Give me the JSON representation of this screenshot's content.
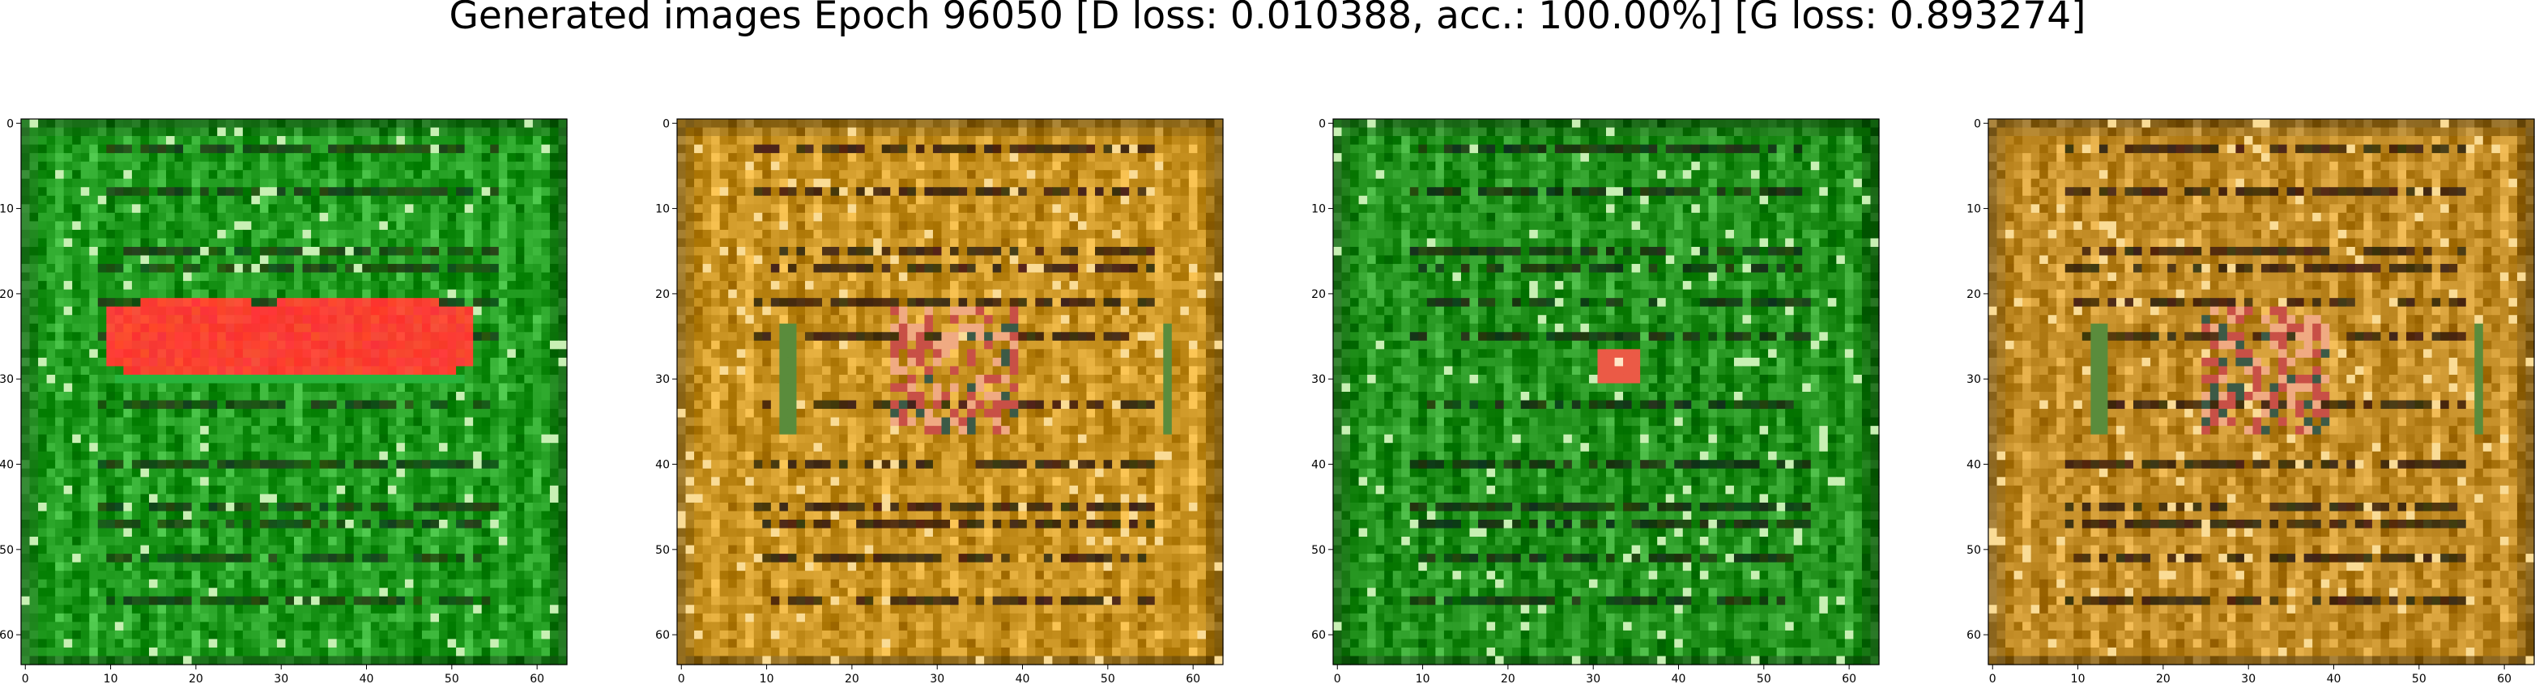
{
  "figure": {
    "title": "Generated images Epoch 96050 [D loss: 0.010388, acc.: 100.00%] [G loss: 0.893274]"
  },
  "axes_ticks": {
    "x": [
      "0",
      "10",
      "20",
      "30",
      "40",
      "50",
      "60"
    ],
    "y": [
      "0",
      "10",
      "20",
      "30",
      "40",
      "50",
      "60"
    ]
  },
  "image_grid_size": 64,
  "panels": [
    {
      "id": "panel-1",
      "base_color": "#1f9a1e",
      "line_color": "#0d3f0c",
      "palette": "green",
      "feature": "red-blob"
    },
    {
      "id": "panel-2",
      "base_color": "#c99322",
      "line_color": "#3a2208",
      "palette": "ochre",
      "feature": "center-detail"
    },
    {
      "id": "panel-3",
      "base_color": "#1f8f1a",
      "line_color": "#0b300a",
      "palette": "green",
      "feature": "small-red-spot"
    },
    {
      "id": "panel-4",
      "base_color": "#c18b25",
      "line_color": "#3a2208",
      "palette": "ochre",
      "feature": "center-detail"
    }
  ]
}
